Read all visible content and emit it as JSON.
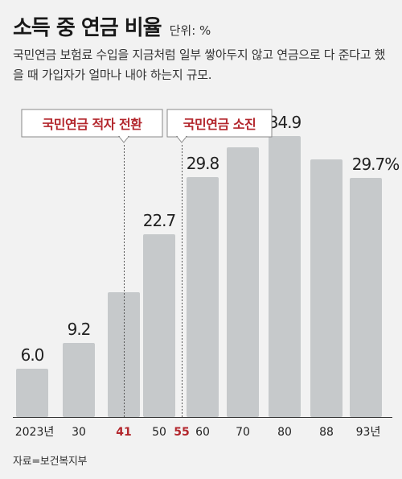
{
  "header": {
    "title": "소득 중 연금 비율",
    "unit": "단위: %",
    "subtitle": "국민연금 보험료 수입을 지금처럼 일부 쌓아두지 않고 연금으로 다 준다고 했을 때 가입자가 얼마나 내야 하는지 규모."
  },
  "source": "자료=보건복지부",
  "colors": {
    "bar": "#c6c9cb",
    "accent": "#b3272d",
    "text": "#222222",
    "background": "#f2f2f2"
  },
  "chart_data": {
    "type": "bar",
    "categories": [
      "2023년",
      "30",
      "41",
      "50",
      "55",
      "60",
      "70",
      "80",
      "88",
      "93년"
    ],
    "values": [
      6.0,
      9.2,
      15.5,
      22.7,
      null,
      29.8,
      33.5,
      34.9,
      32.0,
      29.7
    ],
    "data_labels": [
      "6.0",
      "9.2",
      "",
      "22.7",
      "",
      "29.8",
      "",
      "34.9",
      "",
      "29.7%"
    ],
    "highlighted_categories": [
      "41",
      "55"
    ],
    "ylim": [
      0,
      40
    ],
    "annotations": [
      {
        "label": "국민연금 적자 전환",
        "category": "41"
      },
      {
        "label": "국민연금 소진",
        "category": "55"
      }
    ]
  }
}
